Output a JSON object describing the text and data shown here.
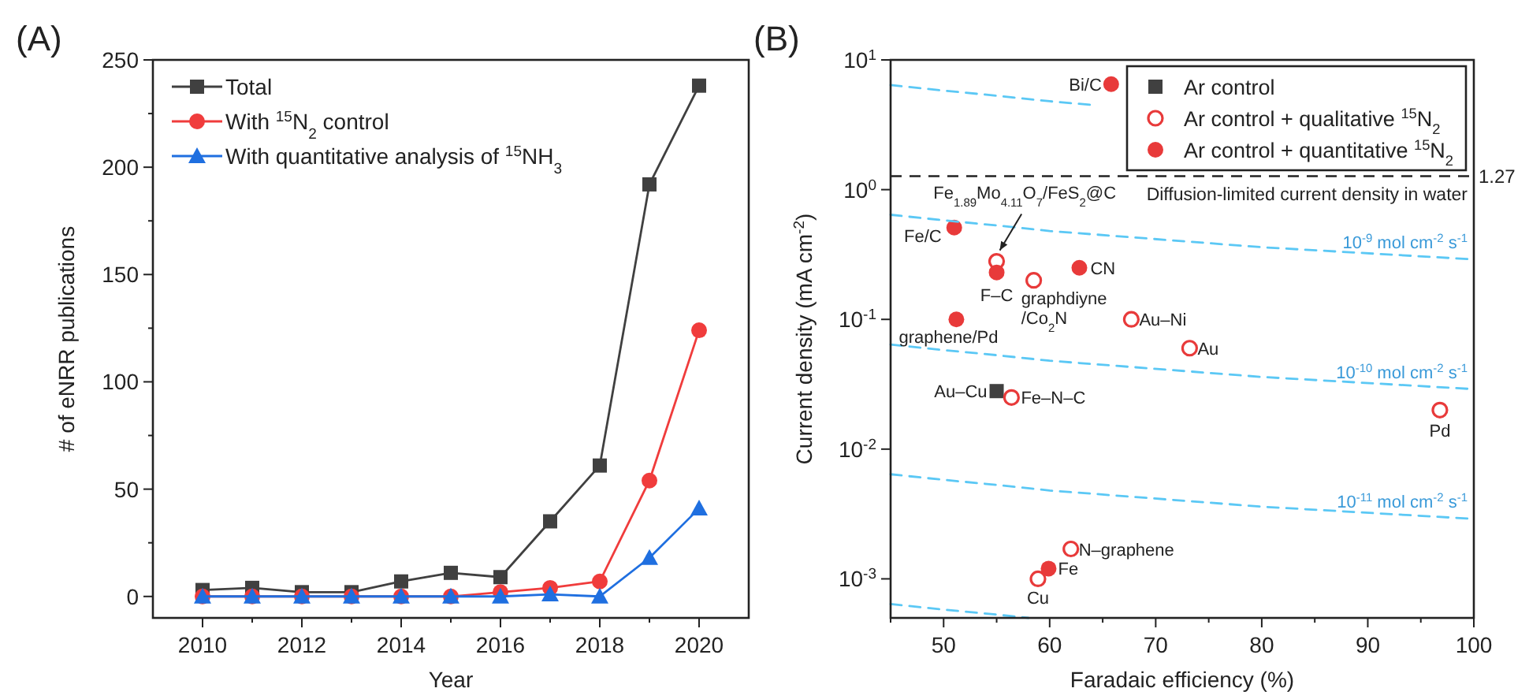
{
  "chart_data": [
    {
      "type": "line",
      "title": "(A)",
      "xlabel": "Year",
      "ylabel": "# of eNRR publications",
      "x": [
        2010,
        2011,
        2012,
        2013,
        2014,
        2015,
        2016,
        2017,
        2018,
        2019,
        2020
      ],
      "xlim": [
        2009,
        2021
      ],
      "xticks": [
        2010,
        {
          "value": 2011,
          "label": null
        },
        2012,
        {
          "value": 2013,
          "label": null
        },
        2014,
        {
          "value": 2015,
          "label": null
        },
        2016,
        {
          "value": 2017,
          "label": null
        },
        2018,
        {
          "value": 2019,
          "label": null
        },
        2020
      ],
      "ylim": [
        -10,
        250
      ],
      "yticks": [
        0,
        {
          "value": 25,
          "label": null
        },
        50,
        {
          "value": 75,
          "label": null
        },
        100,
        {
          "value": 125,
          "label": null
        },
        150,
        {
          "value": 175,
          "label": null
        },
        200,
        {
          "value": 225,
          "label": null
        },
        250
      ],
      "legend": "top left",
      "series": [
        {
          "name": "Total",
          "color": "#404040",
          "marker": "square",
          "values": [
            3,
            4,
            2,
            2,
            7,
            11,
            9,
            35,
            61,
            192,
            238
          ]
        },
        {
          "name": "With $^{15}$N$_{2}$ control",
          "color": "#f03c3c",
          "marker": "circle",
          "values": [
            0,
            0,
            0,
            0,
            0,
            0,
            2,
            4,
            7,
            54,
            124
          ]
        },
        {
          "name": "With quantitative analysis of $^{15}$NH$_{3}$",
          "color": "#1f6fe0",
          "marker": "triangle",
          "values": [
            0,
            0,
            0,
            0,
            0,
            0,
            0,
            1,
            0,
            18,
            41
          ]
        }
      ]
    },
    {
      "type": "scatter",
      "title": "(B)",
      "xlabel": "Faradaic efficiency (%)",
      "ylabel": "Current density (mA cm$^{-2}$)",
      "log": "y",
      "xlim": [
        45,
        100
      ],
      "xticks": [
        {
          "value": 45,
          "label": null
        },
        50,
        {
          "value": 55,
          "label": null
        },
        60,
        {
          "value": 65,
          "label": null
        },
        70,
        {
          "value": 75,
          "label": null
        },
        80,
        {
          "value": 85,
          "label": null
        },
        90,
        {
          "value": 95,
          "label": null
        },
        100
      ],
      "ylim": [
        0.0005,
        10
      ],
      "yticks": [
        {
          "value": 0.001,
          "label": "10$^{-3}$"
        },
        {
          "value": 0.01,
          "label": "10$^{-2}$"
        },
        {
          "value": 0.1,
          "label": "10$^{-1}$"
        },
        {
          "value": 1,
          "label": "10$^{0}$"
        },
        {
          "value": 10,
          "label": "10$^{1}$"
        }
      ],
      "legend": "top right",
      "series": [
        {
          "name": "Ar control",
          "color": "#404040",
          "marker": "square",
          "x": [
            55
          ],
          "values": [
            0.028
          ]
        },
        {
          "name": "Ar control + qualitative $^{15}$N$_{2}$",
          "color": "#e83a3a",
          "marker": "circle-open",
          "x": [
            55,
            58.5,
            67.7,
            73.2,
            56.4,
            96.8,
            62,
            58.9
          ],
          "values": [
            0.28,
            0.2,
            0.1,
            0.06,
            0.025,
            0.02,
            0.0017,
            0.001
          ]
        },
        {
          "name": "Ar control + quantitative $^{15}$N$_{2}$",
          "color": "#e83a3a",
          "marker": "circle",
          "x": [
            65.8,
            51,
            55,
            62.8,
            51.2,
            59.9
          ],
          "values": [
            6.5,
            0.51,
            0.23,
            0.25,
            0.1,
            0.0012
          ]
        },
        {
          "type": "line",
          "color": "#5bc8f5",
          "line_style": "dashed",
          "marker": "none",
          "x": [
            45,
            50,
            55,
            60,
            64
          ],
          "values": [
            6.4,
            5.8,
            5.3,
            4.8,
            4.5
          ]
        },
        {
          "type": "line",
          "name": "10$^{-9}$ mol cm$^{-2}$ s$^{-1}$",
          "color": "#5bc8f5",
          "line_style": "dashed",
          "marker": "none",
          "x": [
            45,
            50,
            55,
            60,
            80,
            100
          ],
          "values": [
            0.64,
            0.58,
            0.53,
            0.48,
            0.36,
            0.29
          ]
        },
        {
          "type": "line",
          "name": "10$^{-10}$ mol cm$^{-2}$ s$^{-1}$",
          "color": "#5bc8f5",
          "line_style": "dashed",
          "marker": "none",
          "x": [
            45,
            50,
            55,
            60,
            80,
            100
          ],
          "values": [
            0.064,
            0.058,
            0.053,
            0.048,
            0.036,
            0.029
          ]
        },
        {
          "type": "line",
          "name": "10$^{-11}$ mol cm$^{-2}$ s$^{-1}$",
          "color": "#5bc8f5",
          "line_style": "dashed",
          "marker": "none",
          "x": [
            45,
            50,
            55,
            60,
            80,
            100
          ],
          "values": [
            0.0064,
            0.0058,
            0.0053,
            0.0048,
            0.0036,
            0.0029
          ]
        },
        {
          "type": "line",
          "color": "#5bc8f5",
          "line_style": "dashed",
          "marker": "none",
          "x": [
            45,
            50,
            55,
            58
          ],
          "values": [
            0.00064,
            0.00058,
            0.00053,
            0.0005
          ]
        }
      ],
      "ref_lines": [
        {
          "axis": "y",
          "value": 1.27,
          "label": "1.27",
          "color": "#222222",
          "line_style": "dashed"
        }
      ],
      "annotations": [
        {
          "text": "Diffusion-limited current density in water",
          "x": 100,
          "y": 1.27
        },
        {
          "text": "Bi/C",
          "x": 65.8,
          "y": 6.5
        },
        {
          "text": "Fe/C",
          "x": 51,
          "y": 0.51
        },
        "Fe$_{1.89}$Mo$_{4.11}$O$_{7}$/FeS$_{2}$@C",
        {
          "text": "F–C",
          "x": 55,
          "y": 0.23
        },
        {
          "text": "CN",
          "x": 62.8,
          "y": 0.25
        },
        {
          "text": "graphdiyne\n/Co$_{2}$N",
          "x": 58.5,
          "y": 0.2
        },
        {
          "text": "graphene/Pd",
          "x": 51.2,
          "y": 0.1
        },
        {
          "text": "Au–Ni",
          "x": 67.7,
          "y": 0.1
        },
        {
          "text": "Au",
          "x": 73.2,
          "y": 0.06
        },
        {
          "text": "Au–Cu",
          "x": 55,
          "y": 0.028
        },
        {
          "text": "Fe–N–C",
          "x": 56.4,
          "y": 0.025
        },
        {
          "text": "Pd",
          "x": 96.8,
          "y": 0.02
        },
        {
          "text": "N–graphene",
          "x": 62,
          "y": 0.0017
        },
        {
          "text": "Fe",
          "x": 59.9,
          "y": 0.0012
        },
        {
          "text": "Cu",
          "x": 58.9,
          "y": 0.001
        }
      ]
    }
  ]
}
